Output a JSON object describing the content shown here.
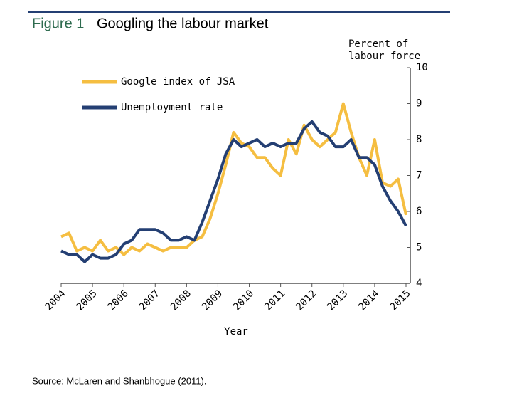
{
  "chart_data": {
    "type": "line",
    "figure_label": "Figure 1",
    "title": "Googling the labour market",
    "ylabel": "Percent of labour force",
    "xlabel": "Year",
    "source": "Source: McLaren and Shanbhogue (2011).",
    "x": [
      2004,
      2004.25,
      2004.5,
      2004.75,
      2005,
      2005.25,
      2005.5,
      2005.75,
      2006,
      2006.25,
      2006.5,
      2006.75,
      2007,
      2007.25,
      2007.5,
      2007.75,
      2008,
      2008.25,
      2008.5,
      2008.75,
      2009,
      2009.25,
      2009.5,
      2009.75,
      2010,
      2010.25,
      2010.5,
      2010.75,
      2011,
      2011.25,
      2011.5,
      2011.75,
      2012,
      2012.25,
      2012.5,
      2012.75,
      2013,
      2013.25,
      2013.5,
      2013.75,
      2014,
      2014.25,
      2014.5,
      2014.75,
      2015
    ],
    "series": [
      {
        "name": "Google index of JSA",
        "color": "#f5be41",
        "values": [
          5.3,
          5.4,
          4.9,
          5.0,
          4.9,
          5.2,
          4.9,
          5.0,
          4.8,
          5.0,
          4.9,
          5.1,
          5.0,
          4.9,
          5.0,
          5.0,
          5.0,
          5.2,
          5.3,
          5.8,
          6.5,
          7.3,
          8.2,
          7.9,
          7.8,
          7.5,
          7.5,
          7.2,
          7.0,
          8.0,
          7.6,
          8.4,
          8.0,
          7.8,
          8.0,
          8.2,
          9.0,
          8.2,
          7.5,
          7.0,
          8.0,
          6.8,
          6.7,
          6.9,
          5.9
        ]
      },
      {
        "name": "Unemployment rate",
        "color": "#243f73",
        "values": [
          4.9,
          4.8,
          4.8,
          4.6,
          4.8,
          4.7,
          4.7,
          4.8,
          5.1,
          5.2,
          5.5,
          5.5,
          5.5,
          5.4,
          5.2,
          5.2,
          5.3,
          5.2,
          5.7,
          6.3,
          6.9,
          7.6,
          8.0,
          7.8,
          7.9,
          8.0,
          7.8,
          7.9,
          7.8,
          7.9,
          7.9,
          8.3,
          8.5,
          8.2,
          8.1,
          7.8,
          7.8,
          8.0,
          7.5,
          7.5,
          7.3,
          6.7,
          6.3,
          6.0,
          5.6
        ]
      }
    ],
    "xlim": [
      2004,
      2015
    ],
    "xticks": [
      2004,
      2005,
      2006,
      2007,
      2008,
      2009,
      2010,
      2011,
      2012,
      2013,
      2014,
      2015
    ],
    "ylim": [
      4,
      10
    ],
    "yticks": [
      4,
      5,
      6,
      7,
      8,
      9,
      10
    ],
    "legend": "upper left"
  }
}
